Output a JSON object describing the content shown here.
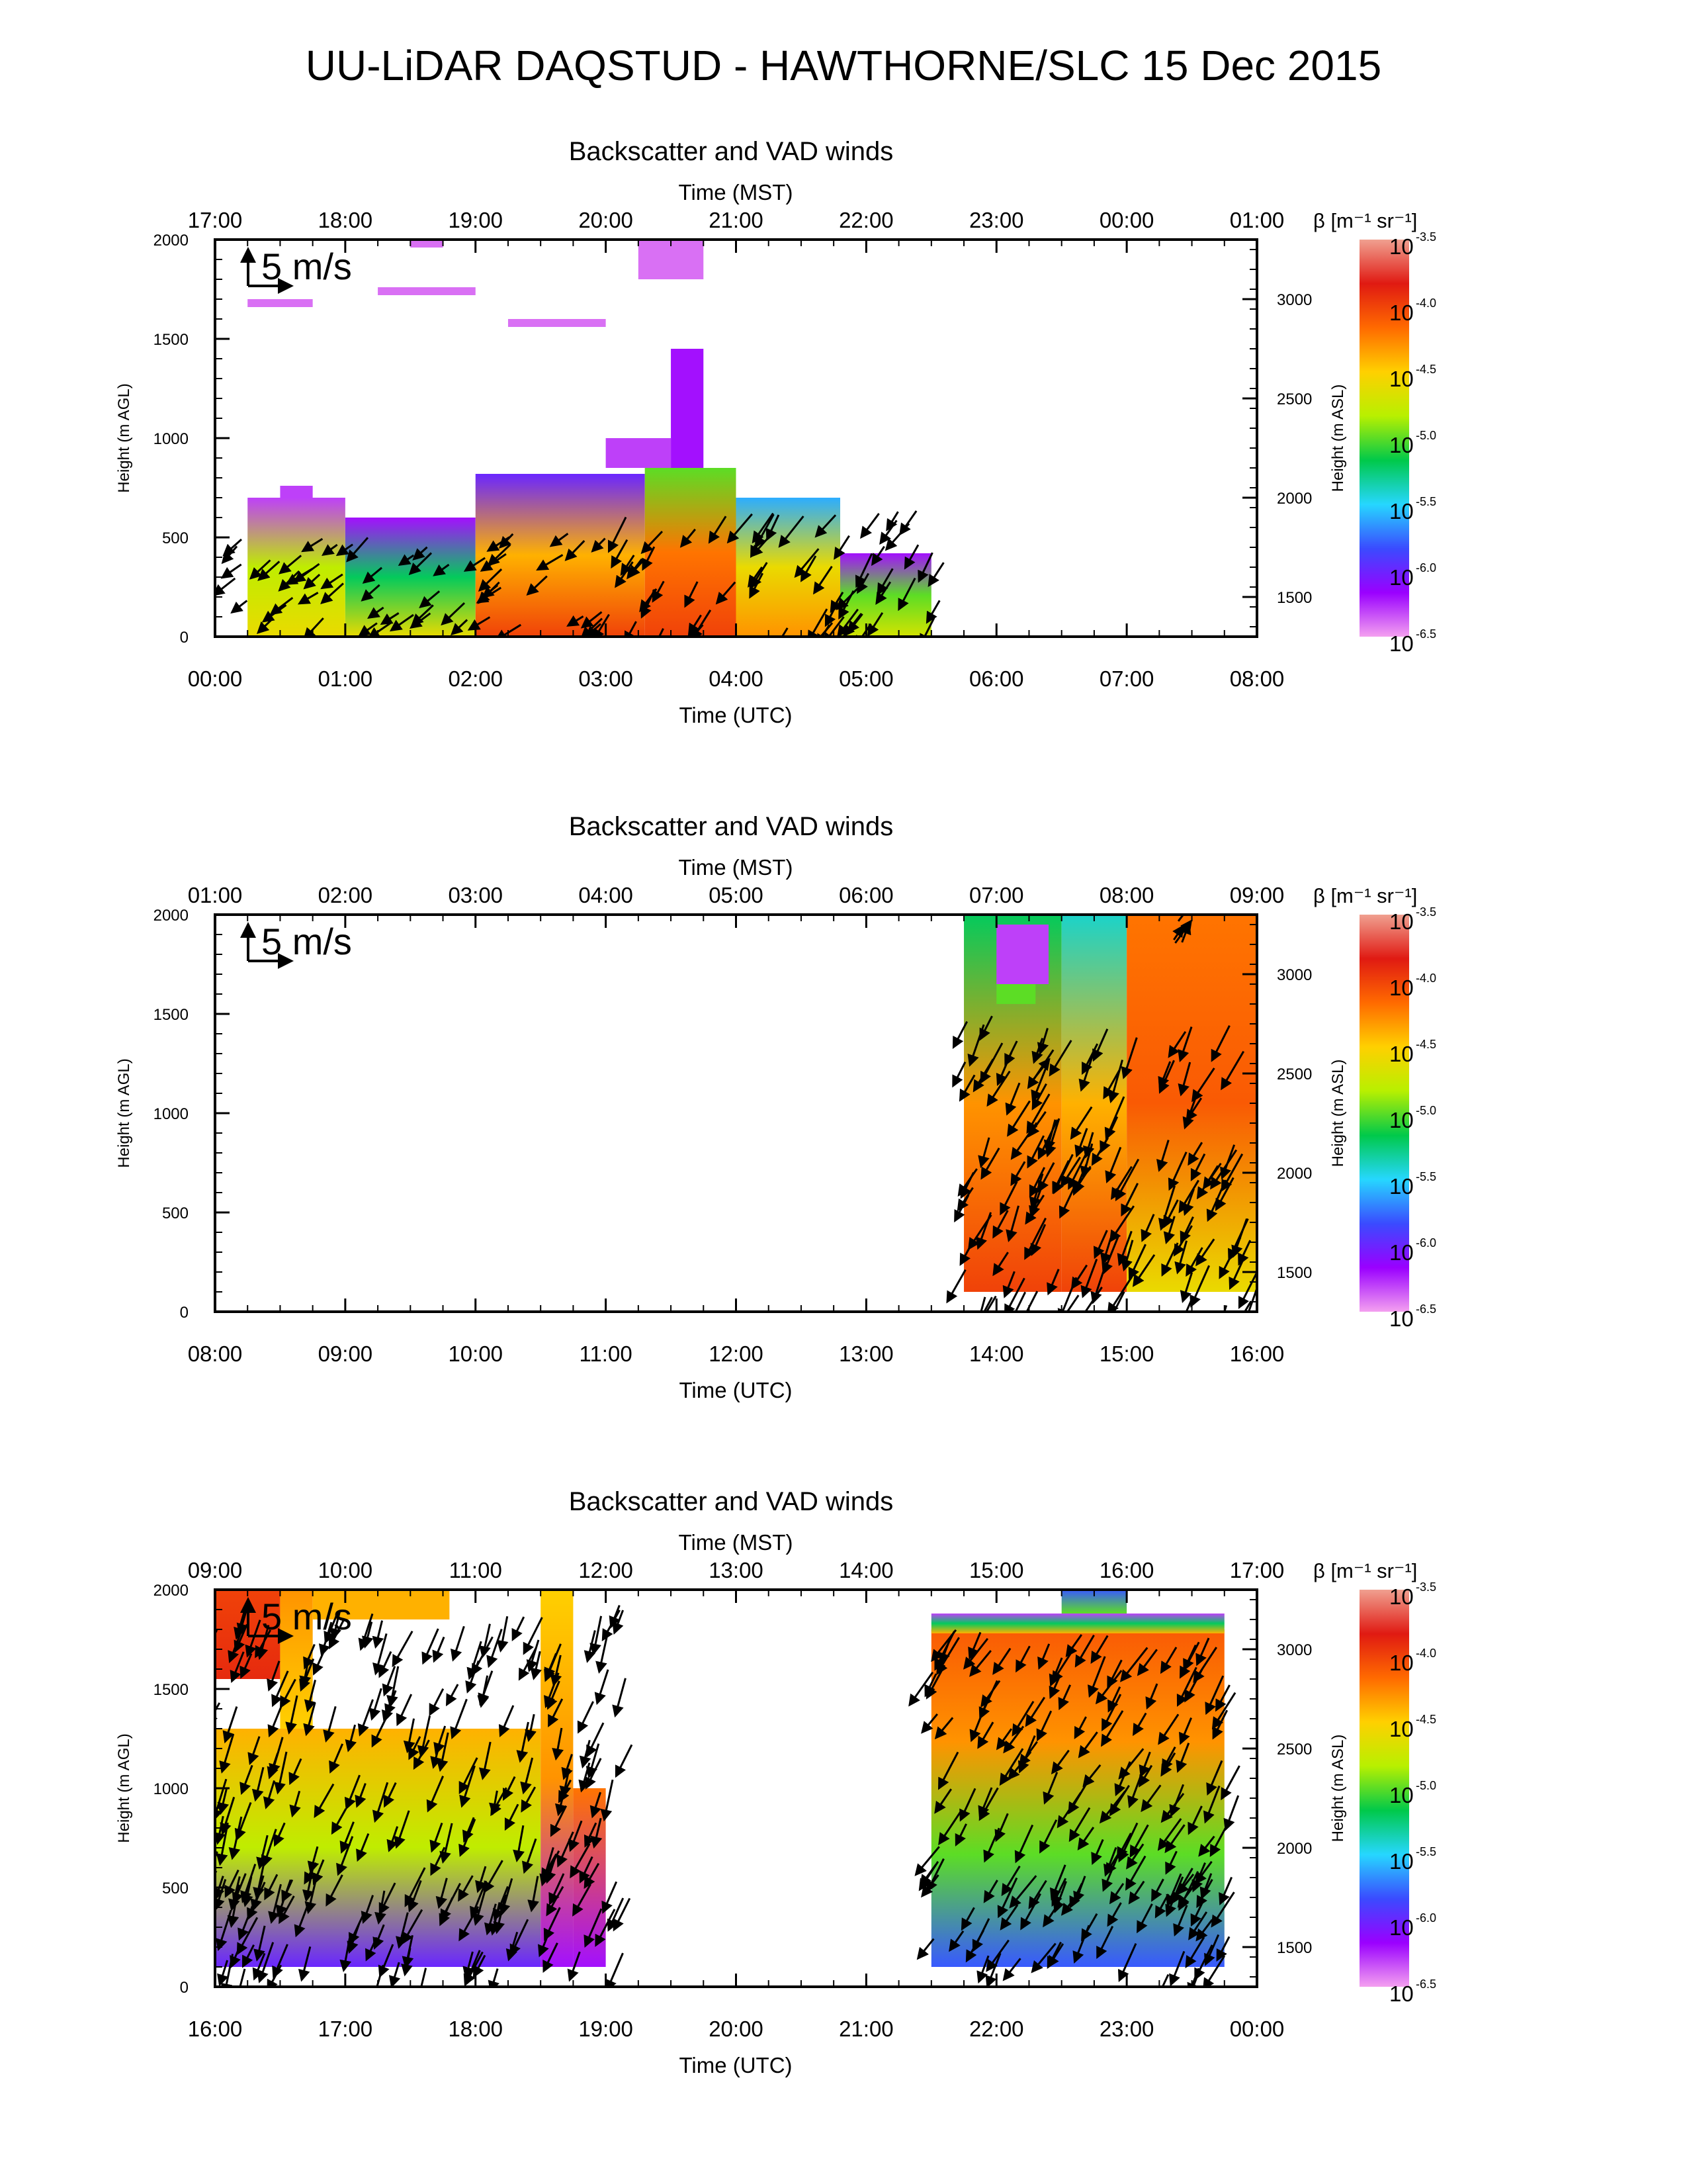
{
  "page": {
    "title": "UU-LiDAR DAQSTUD - HAWTHORNE/SLC 15 Dec 2015"
  },
  "colors": {
    "scale": [
      "#f4a0f0",
      "#9a00ff",
      "#3a4bff",
      "#26d7ff",
      "#00c94a",
      "#b8f000",
      "#ffd000",
      "#ff6a00",
      "#e01a12",
      "#f0a090"
    ],
    "arrows": "#000000",
    "background": "#ffffff"
  },
  "chart_data": [
    {
      "type": "heatmap",
      "title": "Backscatter and VAD winds",
      "top_axis_label": "Time (MST)",
      "top_ticks": [
        "17:00",
        "18:00",
        "19:00",
        "20:00",
        "21:00",
        "22:00",
        "23:00",
        "00:00",
        "01:00"
      ],
      "xlabel": "Time (UTC)",
      "bottom_ticks": [
        "00:00",
        "01:00",
        "02:00",
        "03:00",
        "04:00",
        "05:00",
        "06:00",
        "07:00",
        "08:00"
      ],
      "xlim_utc_hours": [
        0,
        8
      ],
      "ylabel": "Height (m AGL)",
      "ylim": [
        0,
        2000
      ],
      "y_ticks": [
        "0",
        "500",
        "1000",
        "1500",
        "2000"
      ],
      "y2label": "Height (m ASL)",
      "y2_ticks": [
        "1500",
        "2000",
        "2500",
        "3000"
      ],
      "y2_values": [
        1500,
        2000,
        2500,
        3000
      ],
      "y2_offset": 1300,
      "wind_scale_label": "5 m/s",
      "colorbar": {
        "label": "β [m⁻¹ sr⁻¹]",
        "base": "10",
        "exponents": [
          "-3.5",
          "-4.0",
          "-4.5",
          "-5.0",
          "-5.5",
          "-6.0",
          "-6.5"
        ],
        "range": [
          -6.5,
          -3.5
        ]
      },
      "patches": [
        {
          "t": [
            0.25,
            1.0
          ],
          "h": [
            700,
            0
          ],
          "v": [
            -6.3,
            -4.8,
            -4.6
          ]
        },
        {
          "t": [
            0.5,
            0.75
          ],
          "h": [
            760,
            700
          ],
          "v": [
            -6.3
          ]
        },
        {
          "t": [
            1.0,
            2.0
          ],
          "h": [
            600,
            0
          ],
          "v": [
            -6.2,
            -5.2,
            -4.6
          ]
        },
        {
          "t": [
            2.0,
            3.3
          ],
          "h": [
            820,
            0
          ],
          "v": [
            -6.0,
            -4.4,
            -4.0
          ]
        },
        {
          "t": [
            3.3,
            4.0
          ],
          "h": [
            850,
            0
          ],
          "v": [
            -5.0,
            -4.2,
            -4.0
          ]
        },
        {
          "t": [
            4.0,
            4.8
          ],
          "h": [
            700,
            0
          ],
          "v": [
            -5.6,
            -4.6,
            -4.3
          ]
        },
        {
          "t": [
            4.8,
            5.5
          ],
          "h": [
            420,
            0
          ],
          "v": [
            -6.2,
            -5.0,
            -4.7
          ]
        },
        {
          "t": [
            3.5,
            3.75
          ],
          "h": [
            1450,
            850
          ],
          "v": [
            -6.2
          ]
        },
        {
          "t": [
            3.0,
            3.5
          ],
          "h": [
            1000,
            850
          ],
          "v": [
            -6.3
          ]
        },
        {
          "t": [
            3.25,
            3.75
          ],
          "h": [
            2000,
            1800
          ],
          "v": [
            -6.4
          ]
        },
        {
          "t": [
            1.25,
            2.0
          ],
          "h": [
            1760,
            1720
          ],
          "v": [
            -6.4
          ]
        },
        {
          "t": [
            2.25,
            3.0
          ],
          "h": [
            1600,
            1560
          ],
          "v": [
            -6.4
          ]
        },
        {
          "t": [
            0.25,
            0.75
          ],
          "h": [
            1700,
            1660
          ],
          "v": [
            -6.4
          ]
        },
        {
          "t": [
            1.5,
            1.75
          ],
          "h": [
            2000,
            1960
          ],
          "v": [
            -6.4
          ]
        }
      ],
      "wind_segments": [
        {
          "t": [
            0.1,
            3.0
          ],
          "h": [
            40,
            520
          ],
          "dir": -50,
          "len": 0.8
        },
        {
          "t": [
            3.0,
            5.6
          ],
          "h": [
            40,
            640
          ],
          "dir": -35,
          "len": 1.0
        }
      ]
    },
    {
      "type": "heatmap",
      "title": "Backscatter and VAD winds",
      "top_axis_label": "Time (MST)",
      "top_ticks": [
        "01:00",
        "02:00",
        "03:00",
        "04:00",
        "05:00",
        "06:00",
        "07:00",
        "08:00",
        "09:00"
      ],
      "xlabel": "Time (UTC)",
      "bottom_ticks": [
        "08:00",
        "09:00",
        "10:00",
        "11:00",
        "12:00",
        "13:00",
        "14:00",
        "15:00",
        "16:00"
      ],
      "xlim_utc_hours": [
        8,
        16
      ],
      "ylabel": "Height (m AGL)",
      "ylim": [
        0,
        2000
      ],
      "y_ticks": [
        "0",
        "500",
        "1000",
        "1500",
        "2000"
      ],
      "y2label": "Height (m ASL)",
      "y2_ticks": [
        "1500",
        "2000",
        "2500",
        "3000"
      ],
      "y2_values": [
        1500,
        2000,
        2500,
        3000
      ],
      "y2_offset": 1300,
      "wind_scale_label": "5 m/s",
      "colorbar": {
        "label": "β [m⁻¹ sr⁻¹]",
        "base": "10",
        "exponents": [
          "-3.5",
          "-4.0",
          "-4.5",
          "-5.0",
          "-5.5",
          "-6.0",
          "-6.5"
        ],
        "range": [
          -6.5,
          -3.5
        ]
      },
      "patches": [
        {
          "t": [
            13.75,
            14.5
          ],
          "h": [
            2000,
            100
          ],
          "v": [
            -5.2,
            -4.3,
            -4.0
          ]
        },
        {
          "t": [
            14.5,
            15.0
          ],
          "h": [
            2000,
            100
          ],
          "v": [
            -5.4,
            -4.4,
            -4.0
          ]
        },
        {
          "t": [
            15.0,
            16.0
          ],
          "h": [
            2000,
            100
          ],
          "v": [
            -4.2,
            -4.1,
            -4.6
          ]
        },
        {
          "t": [
            14.0,
            14.4
          ],
          "h": [
            1950,
            1650
          ],
          "v": [
            -6.3
          ]
        },
        {
          "t": [
            14.0,
            14.3
          ],
          "h": [
            1650,
            1550
          ],
          "v": [
            -5.0
          ]
        }
      ],
      "wind_segments": [
        {
          "t": [
            13.75,
            16.0
          ],
          "h": [
            20,
            1500
          ],
          "dir": -25,
          "len": 1.2
        },
        {
          "t": [
            15.2,
            15.8
          ],
          "h": [
            1850,
            2000
          ],
          "dir": 150,
          "len": 0.7
        },
        {
          "t": [
            14.2,
            14.3
          ],
          "h": [
            1000,
            1300
          ],
          "dir": 150,
          "len": 1.2
        }
      ]
    },
    {
      "type": "heatmap",
      "title": "Backscatter and VAD winds",
      "top_axis_label": "Time (MST)",
      "top_ticks": [
        "09:00",
        "10:00",
        "11:00",
        "12:00",
        "13:00",
        "14:00",
        "15:00",
        "16:00",
        "17:00"
      ],
      "xlabel": "Time (UTC)",
      "bottom_ticks": [
        "16:00",
        "17:00",
        "18:00",
        "19:00",
        "20:00",
        "21:00",
        "22:00",
        "23:00",
        "00:00"
      ],
      "xlim_utc_hours": [
        16,
        24
      ],
      "ylabel": "Height (m AGL)",
      "ylim": [
        0,
        2000
      ],
      "y_ticks": [
        "0",
        "500",
        "1000",
        "1500",
        "2000"
      ],
      "y2label": "Height (m ASL)",
      "y2_ticks": [
        "1500",
        "2000",
        "2500",
        "3000"
      ],
      "y2_values": [
        1500,
        2000,
        2500,
        3000
      ],
      "y2_offset": 1300,
      "wind_scale_label": "5 m/s",
      "colorbar": {
        "label": "β [m⁻¹ sr⁻¹]",
        "base": "10",
        "exponents": [
          "-3.5",
          "-4.0",
          "-4.5",
          "-5.0",
          "-5.5",
          "-6.0",
          "-6.5"
        ],
        "range": [
          -6.5,
          -3.5
        ]
      },
      "patches": [
        {
          "t": [
            16.0,
            16.5
          ],
          "h": [
            2000,
            1550
          ],
          "v": [
            -4.0,
            -3.9
          ]
        },
        {
          "t": [
            16.5,
            16.75
          ],
          "h": [
            2000,
            1300
          ],
          "v": [
            -4.3,
            -4.5
          ]
        },
        {
          "t": [
            16.75,
            17.8
          ],
          "h": [
            2000,
            1850
          ],
          "v": [
            -4.4
          ]
        },
        {
          "t": [
            16.0,
            18.5
          ],
          "h": [
            1300,
            100
          ],
          "v": [
            -4.4,
            -4.8,
            -6.0
          ]
        },
        {
          "t": [
            18.5,
            18.75
          ],
          "h": [
            2000,
            100
          ],
          "v": [
            -4.5,
            -4.3,
            -6.2
          ]
        },
        {
          "t": [
            18.75,
            19.0
          ],
          "h": [
            1000,
            100
          ],
          "v": [
            -4.2,
            -6.2
          ]
        },
        {
          "t": [
            21.5,
            23.75
          ],
          "h": [
            1800,
            100
          ],
          "v": [
            -4.1,
            -4.3,
            -5.0,
            -5.8
          ]
        },
        {
          "t": [
            21.5,
            23.75
          ],
          "h": [
            1880,
            1780
          ],
          "v": [
            -6.3,
            -5.2,
            -4.4
          ]
        },
        {
          "t": [
            22.5,
            23.0
          ],
          "h": [
            2000,
            1880
          ],
          "v": [
            -5.8,
            -5.0
          ]
        }
      ],
      "wind_segments": [
        {
          "t": [
            16.0,
            19.2
          ],
          "h": [
            60,
            1950
          ],
          "dir": -20,
          "len": 1.1
        },
        {
          "t": [
            21.5,
            23.9
          ],
          "h": [
            60,
            1800
          ],
          "dir": -30,
          "len": 1.1
        }
      ]
    }
  ]
}
